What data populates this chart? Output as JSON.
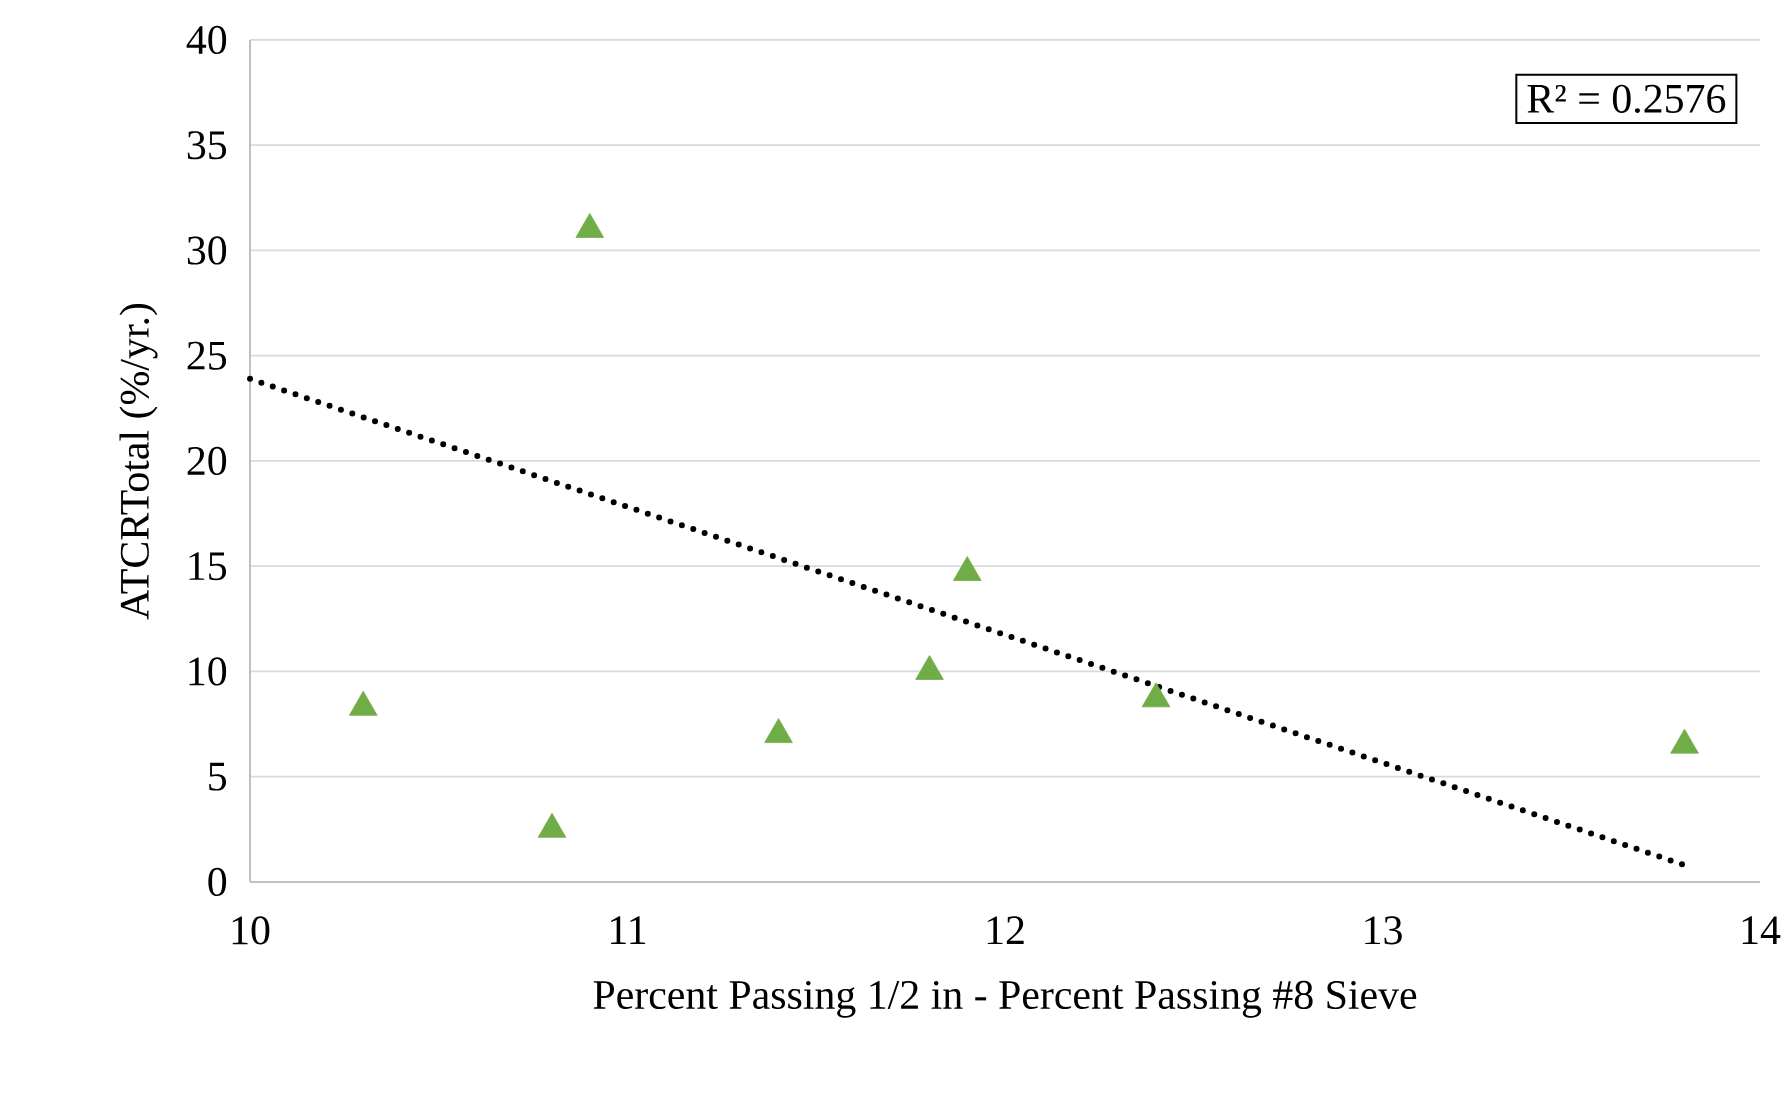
{
  "chart_data": {
    "type": "scatter",
    "xlabel": "Percent Passing 1/2 in - Percent Passing #8 Sieve",
    "ylabel": "ATCRTotal (%/yr.)",
    "grid": "y",
    "xlim": [
      10,
      14
    ],
    "xticks": [
      10,
      11,
      12,
      13,
      14
    ],
    "ylim": [
      0,
      40
    ],
    "yticks": [
      0,
      5,
      10,
      15,
      20,
      25,
      30,
      35,
      40
    ],
    "annotations": [
      "R² = 0.2576"
    ],
    "series": [
      {
        "marker": "triangle",
        "color": "#70ad47",
        "x": [
          10.3,
          10.8,
          10.9,
          11.4,
          11.8,
          11.9,
          12.4,
          13.8
        ],
        "values": [
          8.3,
          2.5,
          31,
          7,
          10,
          14.7,
          8.7,
          6.5
        ]
      },
      {
        "type": "line",
        "marker": "none",
        "color": "#000000",
        "line_style": "dotted",
        "x": [
          10,
          13.8
        ],
        "values": [
          23.9,
          0.8
        ]
      }
    ]
  }
}
